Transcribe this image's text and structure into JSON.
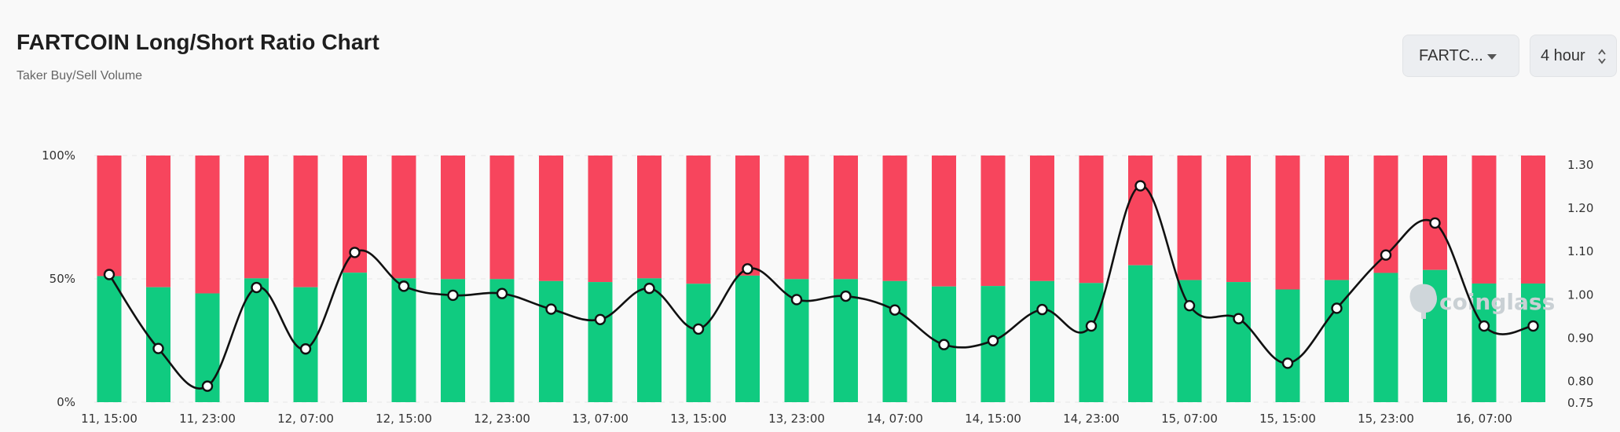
{
  "header": {
    "title": "FARTCOIN Long/Short Ratio Chart",
    "subtitle": "Taker Buy/Sell Volume"
  },
  "controls": {
    "symbol_label": "FARTC...",
    "interval_label": "4 hour"
  },
  "watermark": {
    "text": "coinglass",
    "icon": "coinglass-logo-icon"
  },
  "colors": {
    "long": "#10cb80",
    "short": "#f7455d",
    "line": "#111111"
  },
  "chart_data": {
    "type": "bar",
    "stacked": true,
    "x": [
      "11, 15:00",
      "11, 19:00",
      "11, 23:00",
      "12, 03:00",
      "12, 07:00",
      "12, 11:00",
      "12, 15:00",
      "12, 19:00",
      "12, 23:00",
      "13, 03:00",
      "13, 07:00",
      "13, 11:00",
      "13, 15:00",
      "13, 19:00",
      "13, 23:00",
      "14, 03:00",
      "14, 07:00",
      "14, 11:00",
      "14, 15:00",
      "14, 19:00",
      "14, 23:00",
      "15, 03:00",
      "15, 07:00",
      "15, 11:00",
      "15, 15:00",
      "15, 19:00",
      "15, 23:00",
      "16, 03:00",
      "16, 07:00",
      "16, 11:00"
    ],
    "x_tick_labels": [
      "11, 15:00",
      "11, 23:00",
      "12, 07:00",
      "12, 15:00",
      "12, 23:00",
      "13, 07:00",
      "13, 15:00",
      "13, 23:00",
      "14, 07:00",
      "14, 15:00",
      "14, 23:00",
      "15, 07:00",
      "15, 15:00",
      "15, 23:00",
      "16, 07:00"
    ],
    "series": [
      {
        "values": [
          51.1,
          46.6,
          44.1,
          50.2,
          46.6,
          52.5,
          50.2,
          49.9,
          49.9,
          49.1,
          48.7,
          50.2,
          48.0,
          51.3,
          49.9,
          49.9,
          49.1,
          46.9,
          47.1,
          49.1,
          48.3,
          55.5,
          49.5,
          48.7,
          45.7,
          49.5,
          52.4,
          53.6,
          48.1,
          48.1
        ]
      },
      {
        "values": [
          48.9,
          53.4,
          55.9,
          49.8,
          53.4,
          47.5,
          49.8,
          50.1,
          50.1,
          50.9,
          51.3,
          49.8,
          52.0,
          48.7,
          50.1,
          50.1,
          50.9,
          53.1,
          52.9,
          50.9,
          51.7,
          44.5,
          50.5,
          51.3,
          54.3,
          50.5,
          47.6,
          46.4,
          51.9,
          51.9
        ]
      },
      {
        "values": [
          1.045,
          0.874,
          0.787,
          1.015,
          0.873,
          1.096,
          1.018,
          0.997,
          1.001,
          0.965,
          0.941,
          1.013,
          0.919,
          1.058,
          0.987,
          0.995,
          0.963,
          0.883,
          0.892,
          0.964,
          0.926,
          1.25,
          0.973,
          0.943,
          0.84,
          0.967,
          1.09,
          1.164,
          0.926,
          0.926
        ]
      }
    ],
    "y_left": {
      "ticks": [
        "0%",
        "50%",
        "100%"
      ],
      "range": [
        0,
        100
      ]
    },
    "y_right": {
      "ticks": [
        "0.75",
        "0.80",
        "0.90",
        "1.00",
        "1.10",
        "1.20",
        "1.30"
      ],
      "range": [
        0.75,
        1.32
      ]
    },
    "grid": "horizontal-dashed",
    "legend": "none"
  }
}
